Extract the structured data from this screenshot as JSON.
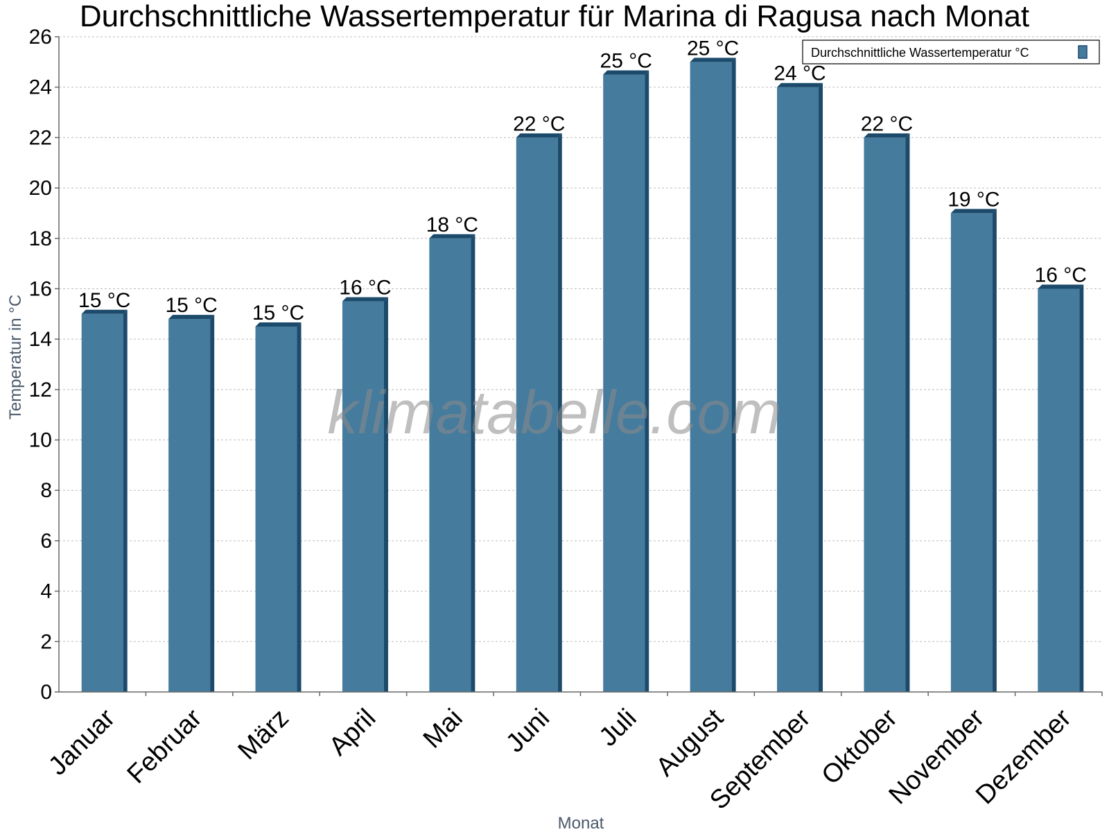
{
  "chart_data": {
    "type": "bar",
    "title": "Durchschnittliche Wassertemperatur für Marina di Ragusa nach Monat",
    "xlabel": "Monat",
    "ylabel": "Temperatur in °C",
    "ylim": [
      0,
      26
    ],
    "yticks": [
      0,
      2,
      4,
      6,
      8,
      10,
      12,
      14,
      16,
      18,
      20,
      22,
      24,
      26
    ],
    "grid": true,
    "legend_position": "top-right",
    "categories": [
      "Januar",
      "Februar",
      "März",
      "April",
      "Mai",
      "Juni",
      "Juli",
      "August",
      "September",
      "Oktober",
      "November",
      "Dezember"
    ],
    "series": [
      {
        "name": "Durchschnittliche Wassertemperatur °C",
        "color": "#457b9d",
        "values": [
          15.0,
          14.8,
          14.5,
          15.5,
          18.0,
          22.0,
          24.5,
          25.0,
          24.0,
          22.0,
          19.0,
          16.0
        ],
        "labels": [
          "15 °C",
          "15 °C",
          "15 °C",
          "16 °C",
          "18 °C",
          "22 °C",
          "25 °C",
          "25 °C",
          "24 °C",
          "22 °C",
          "19 °C",
          "16 °C"
        ]
      }
    ]
  },
  "watermark": "klimatabelle.com",
  "colors": {
    "bar": "#457b9d",
    "bar_shade": "#1c4a6b",
    "grid": "#bbbbbb",
    "axis": "#666666"
  }
}
